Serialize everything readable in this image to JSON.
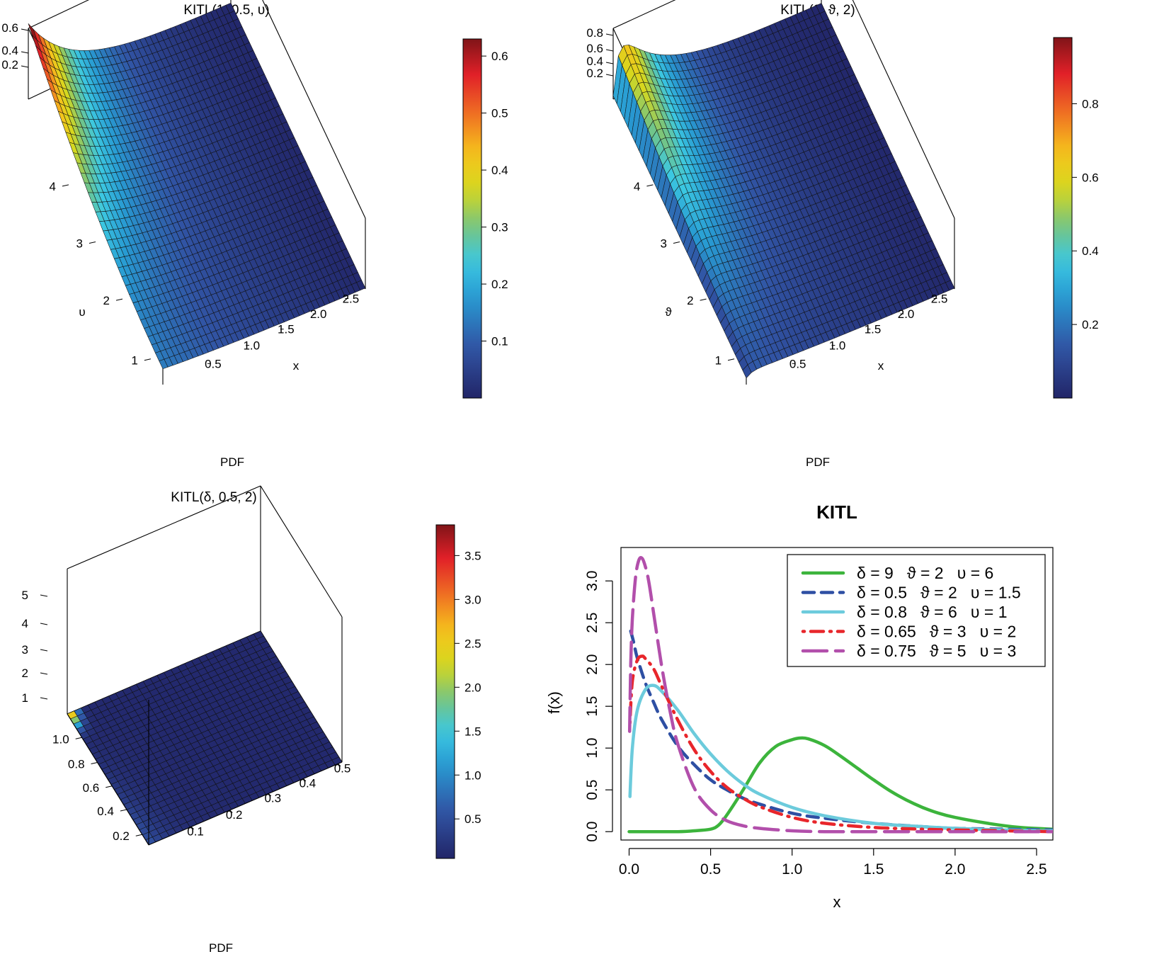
{
  "chart_data": [
    {
      "type": "surface",
      "title": "KITL(1, 0.5, υ)",
      "xlabel": "x",
      "ylabel": "υ",
      "zlabel": "PDF",
      "x_ticks": [
        "0.5",
        "1.0",
        "1.5",
        "2.0",
        "2.5"
      ],
      "y_ticks": [
        "1",
        "2",
        "3",
        "4"
      ],
      "z_ticks": [
        "0.2",
        "0.4",
        "0.6"
      ],
      "colorbar_ticks": [
        "0.1",
        "0.2",
        "0.3",
        "0.4",
        "0.5",
        "0.6"
      ],
      "colorbar_range": [
        0.0,
        0.63
      ],
      "peak": {
        "x": 0.05,
        "param": 5.0,
        "pdf": 0.63
      }
    },
    {
      "type": "surface",
      "title": "KITL(2, ϑ, 2)",
      "xlabel": "x",
      "ylabel": "ϑ",
      "zlabel": "PDF",
      "x_ticks": [
        "0.5",
        "1.0",
        "1.5",
        "2.0",
        "2.5"
      ],
      "y_ticks": [
        "1",
        "2",
        "3",
        "4"
      ],
      "z_ticks": [
        "0.2",
        "0.4",
        "0.6",
        "0.8"
      ],
      "colorbar_ticks": [
        "0.2",
        "0.4",
        "0.6",
        "0.8"
      ],
      "colorbar_range": [
        0.0,
        0.98
      ],
      "peak": {
        "x": 0.05,
        "param": 5.0,
        "pdf": 0.98
      }
    },
    {
      "type": "surface",
      "title": "KITL(δ, 0.5, 2)",
      "xlabel": "",
      "ylabel": "",
      "zlabel": "PDF",
      "x_ticks": [
        "0.1",
        "0.2",
        "0.3",
        "0.4",
        "0.5"
      ],
      "y_ticks": [
        "0.2",
        "0.4",
        "0.6",
        "0.8",
        "1.0"
      ],
      "z_ticks": [
        "1",
        "2",
        "3",
        "4",
        "5"
      ],
      "colorbar_ticks": [
        "0.5",
        "1.0",
        "1.5",
        "2.0",
        "2.5",
        "3.0",
        "3.5"
      ],
      "colorbar_range": [
        0.05,
        3.85
      ],
      "peak": {
        "x": 0.01,
        "param": 0.95,
        "pdf": 3.85
      }
    },
    {
      "type": "line",
      "title": "KITL",
      "xlabel": "x",
      "ylabel": "f(x)",
      "xlim": [
        -0.05,
        2.6
      ],
      "ylim": [
        -0.1,
        3.4
      ],
      "x_ticks": [
        "0.0",
        "0.5",
        "1.0",
        "1.5",
        "2.0",
        "2.5"
      ],
      "y_ticks": [
        "0.0",
        "0.5",
        "1.0",
        "1.5",
        "2.0",
        "2.5",
        "3.0"
      ],
      "legend_position": "top-right",
      "series": [
        {
          "name": "δ = 9   ϑ = 2   υ = 6",
          "color": "#3cb43c",
          "style": "solid",
          "x": [
            0.0,
            0.3,
            0.4,
            0.5,
            0.55,
            0.6,
            0.7,
            0.8,
            0.9,
            1.0,
            1.05,
            1.1,
            1.2,
            1.3,
            1.4,
            1.5,
            1.6,
            1.7,
            1.8,
            1.9,
            2.0,
            2.2,
            2.4,
            2.6
          ],
          "y": [
            0.0,
            0.0,
            0.01,
            0.03,
            0.08,
            0.2,
            0.5,
            0.82,
            1.02,
            1.1,
            1.12,
            1.11,
            1.03,
            0.9,
            0.76,
            0.62,
            0.49,
            0.38,
            0.29,
            0.22,
            0.17,
            0.1,
            0.05,
            0.03
          ]
        },
        {
          "name": "δ = 0.5   ϑ = 2   υ = 1.5",
          "color": "#2e4fa3",
          "style": "dashed",
          "x": [
            0.01,
            0.03,
            0.05,
            0.1,
            0.15,
            0.2,
            0.3,
            0.4,
            0.5,
            0.6,
            0.7,
            0.8,
            1.0,
            1.2,
            1.5,
            1.8,
            2.0,
            2.3,
            2.6
          ],
          "y": [
            2.4,
            2.25,
            2.08,
            1.78,
            1.55,
            1.34,
            1.02,
            0.8,
            0.62,
            0.5,
            0.4,
            0.33,
            0.22,
            0.16,
            0.1,
            0.06,
            0.04,
            0.03,
            0.02
          ]
        },
        {
          "name": "δ = 0.8   ϑ = 6   υ = 1",
          "color": "#6ccbdc",
          "style": "solid",
          "x": [
            0.005,
            0.02,
            0.05,
            0.1,
            0.15,
            0.2,
            0.3,
            0.4,
            0.5,
            0.6,
            0.7,
            0.8,
            1.0,
            1.2,
            1.5,
            1.8,
            2.0,
            2.3,
            2.6
          ],
          "y": [
            0.42,
            1.0,
            1.45,
            1.7,
            1.75,
            1.68,
            1.45,
            1.17,
            0.93,
            0.73,
            0.57,
            0.45,
            0.29,
            0.19,
            0.1,
            0.06,
            0.04,
            0.02,
            0.01
          ]
        },
        {
          "name": "δ = 0.65   ϑ = 3   υ = 2",
          "color": "#e8262b",
          "style": "dotdash",
          "x": [
            0.005,
            0.02,
            0.05,
            0.08,
            0.1,
            0.15,
            0.2,
            0.3,
            0.4,
            0.5,
            0.6,
            0.7,
            0.8,
            1.0,
            1.2,
            1.5,
            1.8,
            2.0,
            2.3,
            2.6
          ],
          "y": [
            1.3,
            1.8,
            2.05,
            2.1,
            2.07,
            1.95,
            1.74,
            1.33,
            0.98,
            0.72,
            0.53,
            0.4,
            0.3,
            0.17,
            0.1,
            0.05,
            0.03,
            0.02,
            0.01,
            0.0
          ]
        },
        {
          "name": "δ = 0.75   ϑ = 5   υ = 3",
          "color": "#b24fab",
          "style": "longdash",
          "x": [
            0.003,
            0.01,
            0.02,
            0.04,
            0.06,
            0.08,
            0.1,
            0.12,
            0.15,
            0.2,
            0.25,
            0.3,
            0.4,
            0.5,
            0.6,
            0.7,
            0.8,
            1.0,
            1.2,
            1.5,
            2.0,
            2.6
          ],
          "y": [
            1.2,
            2.0,
            2.55,
            3.05,
            3.25,
            3.27,
            3.17,
            3.0,
            2.62,
            1.98,
            1.45,
            1.04,
            0.52,
            0.26,
            0.13,
            0.07,
            0.04,
            0.01,
            0.0,
            0.0,
            0.0,
            0.0
          ]
        }
      ]
    }
  ]
}
